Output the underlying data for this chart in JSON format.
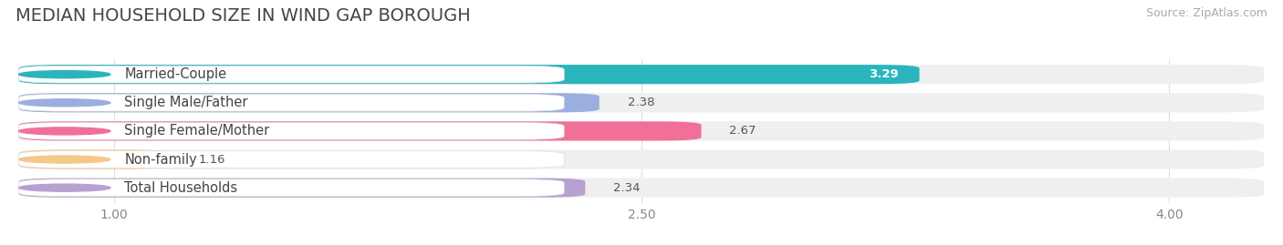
{
  "title": "MEDIAN HOUSEHOLD SIZE IN WIND GAP BOROUGH",
  "source": "Source: ZipAtlas.com",
  "categories": [
    "Married-Couple",
    "Single Male/Father",
    "Single Female/Mother",
    "Non-family",
    "Total Households"
  ],
  "values": [
    3.29,
    2.38,
    2.67,
    1.16,
    2.34
  ],
  "bar_colors": [
    "#2ab5bc",
    "#9baee0",
    "#f07098",
    "#f5c88a",
    "#b8a0d0"
  ],
  "xmin": 1.0,
  "xmax": 4.0,
  "xlim_left": 0.72,
  "xlim_right": 4.28,
  "xticks": [
    1.0,
    2.5,
    4.0
  ],
  "xtick_labels": [
    "1.00",
    "2.50",
    "4.00"
  ],
  "background_color": "#ffffff",
  "bar_bg_color": "#efefef",
  "title_fontsize": 14,
  "label_fontsize": 10.5,
  "value_fontsize": 9.5,
  "source_fontsize": 9
}
